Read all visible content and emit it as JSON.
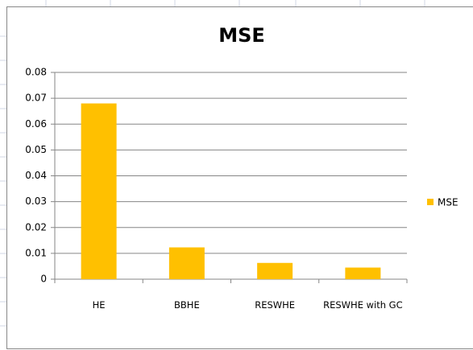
{
  "chart_data": {
    "type": "bar",
    "title": "MSE",
    "categories": [
      "HE",
      "BBHE",
      "RESWHE",
      "RESWHE with GC"
    ],
    "series": [
      {
        "name": "MSE",
        "color": "#ffc000",
        "values": [
          0.068,
          0.0123,
          0.0063,
          0.0045
        ]
      }
    ],
    "ylim": [
      0,
      0.08
    ],
    "yticks": [
      0,
      0.01,
      0.02,
      0.03,
      0.04,
      0.05,
      0.06,
      0.07,
      0.08
    ],
    "grid": true,
    "legend": "right"
  }
}
